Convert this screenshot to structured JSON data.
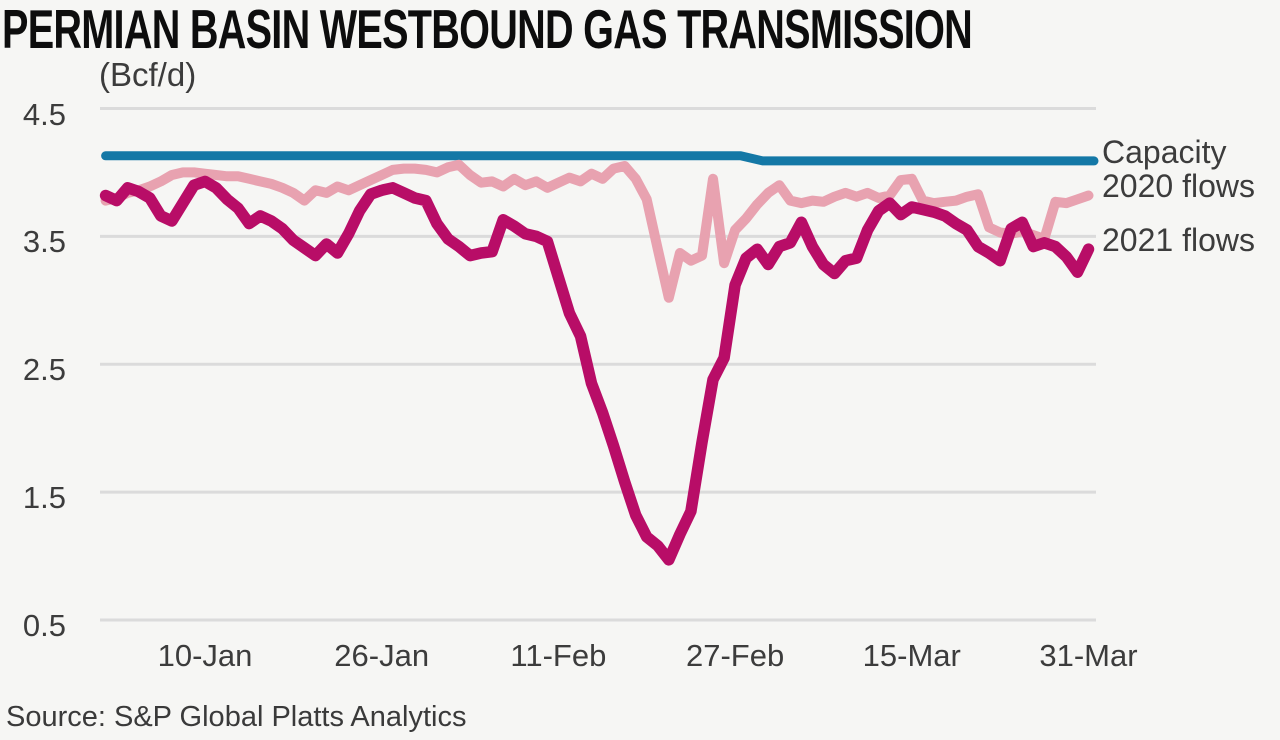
{
  "title": "PERMIAN BASIN WESTBOUND GAS TRANSMISSION",
  "units_label": "(Bcf/d)",
  "source": "Source: S&P Global Platts Analytics",
  "colors": {
    "capacity": "#1478a6",
    "flows_2020": "#e8a2b0",
    "flows_2021": "#b80d67",
    "grid": "#dbdbdb",
    "axis_text": "#3c3c3c",
    "title_text": "#0d0d0d",
    "background": "#f6f6f4"
  },
  "legend": [
    {
      "label": "Capacity"
    },
    {
      "label": "2020 flows"
    },
    {
      "label": "2021 flows"
    }
  ],
  "chart_data": {
    "type": "line",
    "title": "PERMIAN BASIN WESTBOUND GAS TRANSMISSION",
    "ylabel": "(Bcf/d)",
    "xlabel": "",
    "grid": "horizontal",
    "legend_position": "right of line ends",
    "ylim": [
      0.5,
      4.5
    ],
    "yticks": [
      4.5,
      3.5,
      2.5,
      1.5,
      0.5
    ],
    "ytick_labels": [
      "4.5",
      "3.5",
      "2.5",
      "1.5",
      "0.5"
    ],
    "x_unit": "day of year, Jan 1 = 1",
    "x_range_days": [
      1,
      90
    ],
    "xtick_days": [
      10,
      26,
      42,
      58,
      74,
      90
    ],
    "xticklabels": [
      "10-Jan",
      "26-Jan",
      "11-Feb",
      "27-Feb",
      "15-Mar",
      "31-Mar"
    ],
    "series": [
      {
        "name": "Capacity",
        "color": "#1478a6",
        "width": 9,
        "x_days": [
          1,
          58.5,
          60.5,
          90.5
        ],
        "values": [
          4.13,
          4.13,
          4.09,
          4.09
        ]
      },
      {
        "name": "2020 flows",
        "color": "#e8a2b0",
        "width": 10,
        "start_day": 1,
        "values": [
          3.78,
          3.8,
          3.84,
          3.86,
          3.89,
          3.93,
          3.98,
          4.0,
          4.0,
          3.99,
          3.98,
          3.97,
          3.97,
          3.95,
          3.93,
          3.91,
          3.88,
          3.84,
          3.78,
          3.86,
          3.84,
          3.89,
          3.86,
          3.9,
          3.94,
          3.98,
          4.02,
          4.03,
          4.03,
          4.02,
          4.0,
          4.04,
          4.06,
          3.98,
          3.92,
          3.93,
          3.89,
          3.95,
          3.9,
          3.93,
          3.88,
          3.92,
          3.96,
          3.93,
          3.99,
          3.95,
          4.03,
          4.05,
          3.95,
          3.79,
          3.4,
          3.02,
          3.37,
          3.31,
          3.35,
          3.95,
          3.29,
          3.55,
          3.64,
          3.75,
          3.84,
          3.9,
          3.78,
          3.76,
          3.78,
          3.77,
          3.81,
          3.84,
          3.81,
          3.84,
          3.8,
          3.82,
          3.94,
          3.95,
          3.78,
          3.76,
          3.77,
          3.78,
          3.81,
          3.83,
          3.57,
          3.53,
          3.52,
          3.54,
          3.51,
          3.48,
          3.77,
          3.76,
          3.79,
          3.82
        ]
      },
      {
        "name": "2021 flows",
        "color": "#b80d67",
        "width": 11.5,
        "start_day": 1,
        "values": [
          3.82,
          3.78,
          3.88,
          3.85,
          3.8,
          3.66,
          3.62,
          3.76,
          3.9,
          3.93,
          3.88,
          3.79,
          3.72,
          3.6,
          3.66,
          3.62,
          3.56,
          3.47,
          3.41,
          3.35,
          3.44,
          3.37,
          3.52,
          3.7,
          3.83,
          3.86,
          3.88,
          3.84,
          3.8,
          3.78,
          3.6,
          3.48,
          3.42,
          3.35,
          3.37,
          3.38,
          3.63,
          3.58,
          3.52,
          3.5,
          3.46,
          3.18,
          2.9,
          2.72,
          2.35,
          2.12,
          1.86,
          1.58,
          1.32,
          1.15,
          1.08,
          0.97,
          1.17,
          1.35,
          1.89,
          2.38,
          2.55,
          3.12,
          3.33,
          3.4,
          3.28,
          3.42,
          3.45,
          3.61,
          3.42,
          3.28,
          3.21,
          3.31,
          3.33,
          3.55,
          3.7,
          3.76,
          3.67,
          3.73,
          3.71,
          3.69,
          3.66,
          3.6,
          3.55,
          3.42,
          3.37,
          3.31,
          3.56,
          3.61,
          3.42,
          3.45,
          3.42,
          3.34,
          3.22,
          3.4
        ]
      }
    ]
  }
}
